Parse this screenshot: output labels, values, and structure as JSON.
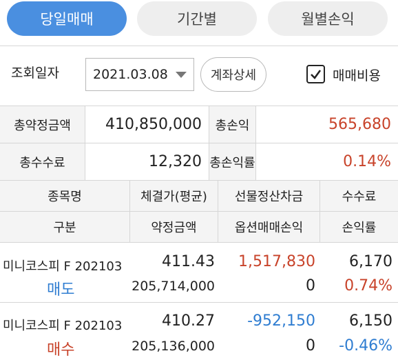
{
  "tabs": [
    {
      "label": "당일매매"
    },
    {
      "label": "기간별"
    },
    {
      "label": "월별손익"
    }
  ],
  "query": {
    "label": "조회일자",
    "date": "2021.03.08",
    "detail_button": "계좌상세",
    "checkbox_label": "매매비용",
    "checkbox_checked": true
  },
  "summary": {
    "total_contract_label": "총약정금액",
    "total_contract_value": "410,850,000",
    "total_pnl_label": "총손익",
    "total_pnl_value": "565,680",
    "total_fee_label": "총수수료",
    "total_fee_value": "12,320",
    "total_pnl_rate_label": "총손익률",
    "total_pnl_rate_value": "0.14%"
  },
  "table": {
    "headers_row1": [
      "종목명",
      "체결가(평균)",
      "선물정산차금",
      "수수료"
    ],
    "headers_row2": [
      "구분",
      "약정금액",
      "옵션매매손익",
      "손익률"
    ],
    "rows": [
      {
        "name": "미니코스피 F 202103",
        "side": "매도",
        "price": "411.43",
        "amount": "205,714,000",
        "futures_settle": "1,517,830",
        "option_pnl": "0",
        "fee": "6,170",
        "rate": "0.74%"
      },
      {
        "name": "미니코스피 F 202103",
        "side": "매수",
        "price": "410.27",
        "amount": "205,136,000",
        "futures_settle": "-952,150",
        "option_pnl": "0",
        "fee": "6,150",
        "rate": "-0.46%"
      }
    ]
  },
  "colors": {
    "accent": "#4a8fe0",
    "positive": "#c8432a",
    "negative": "#2f7dd1"
  }
}
